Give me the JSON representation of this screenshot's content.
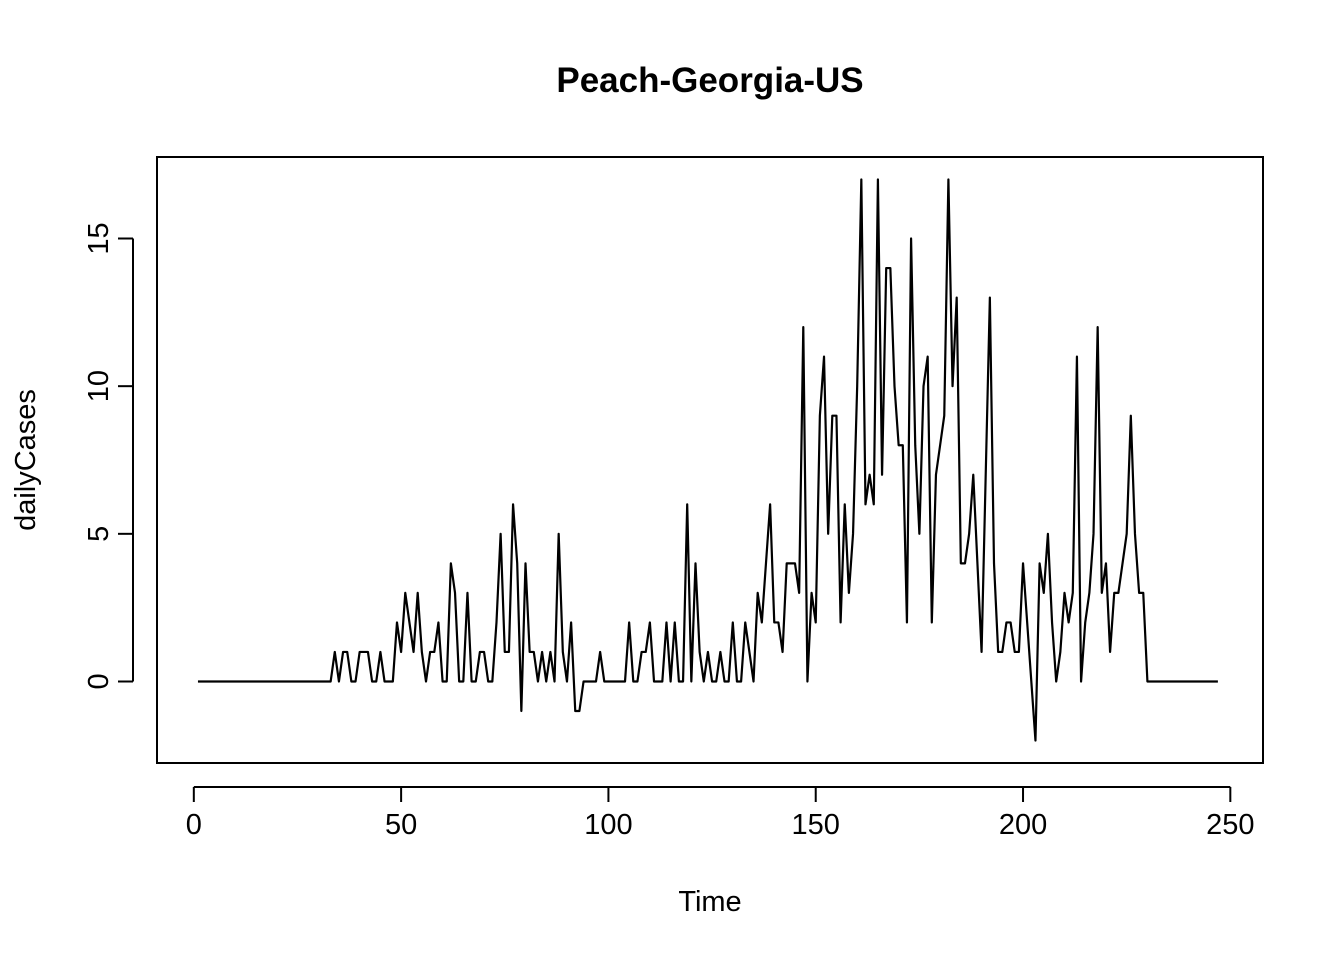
{
  "chart_data": {
    "type": "line",
    "title": "Peach-Georgia-US",
    "xlabel": "Time",
    "ylabel": "dailyCases",
    "xlim": [
      1,
      248
    ],
    "ylim": [
      -2,
      17
    ],
    "x_ticks": [
      0,
      50,
      100,
      150,
      200,
      250
    ],
    "y_ticks": [
      0,
      5,
      10,
      15
    ],
    "grid": false,
    "legend": "none",
    "line_color": "#000000",
    "series": [
      {
        "x_start": 1,
        "values": [
          0,
          0,
          0,
          0,
          0,
          0,
          0,
          0,
          0,
          0,
          0,
          0,
          0,
          0,
          0,
          0,
          0,
          0,
          0,
          0,
          0,
          0,
          0,
          0,
          0,
          0,
          0,
          0,
          0,
          0,
          0,
          0,
          0,
          1,
          0,
          1,
          1,
          0,
          0,
          1,
          1,
          1,
          0,
          0,
          1,
          0,
          0,
          0,
          2,
          1,
          3,
          2,
          1,
          3,
          1,
          0,
          1,
          1,
          2,
          0,
          0,
          4,
          3,
          0,
          0,
          3,
          0,
          0,
          1,
          1,
          0,
          0,
          2,
          5,
          1,
          1,
          6,
          4,
          -1,
          4,
          1,
          1,
          0,
          1,
          0,
          1,
          0,
          5,
          1,
          0,
          2,
          -1,
          -1,
          0,
          0,
          0,
          0,
          1,
          0,
          0,
          0,
          0,
          0,
          0,
          2,
          0,
          0,
          1,
          1,
          2,
          0,
          0,
          0,
          2,
          0,
          2,
          0,
          0,
          6,
          0,
          4,
          1,
          0,
          1,
          0,
          0,
          1,
          0,
          0,
          2,
          0,
          0,
          2,
          1,
          0,
          3,
          2,
          4,
          6,
          2,
          2,
          1,
          4,
          4,
          4,
          3,
          12,
          0,
          3,
          2,
          9,
          11,
          5,
          9,
          9,
          2,
          6,
          3,
          5,
          10,
          17,
          6,
          7,
          6,
          17,
          7,
          14,
          14,
          10,
          8,
          8,
          2,
          15,
          8,
          5,
          10,
          11,
          2,
          7,
          8,
          9,
          17,
          10,
          13,
          4,
          4,
          5,
          7,
          4,
          1,
          7,
          13,
          4,
          1,
          1,
          2,
          2,
          1,
          1,
          4,
          2,
          0,
          -2,
          4,
          3,
          5,
          2,
          0,
          1,
          3,
          2,
          3,
          11,
          0,
          2,
          3,
          5,
          12,
          3,
          4,
          1,
          3,
          3,
          4,
          5,
          9,
          5,
          3,
          3,
          0,
          0,
          0,
          0,
          0,
          0,
          0,
          0,
          0,
          0,
          0,
          0,
          0,
          0,
          0,
          0,
          0,
          0
        ]
      }
    ]
  }
}
